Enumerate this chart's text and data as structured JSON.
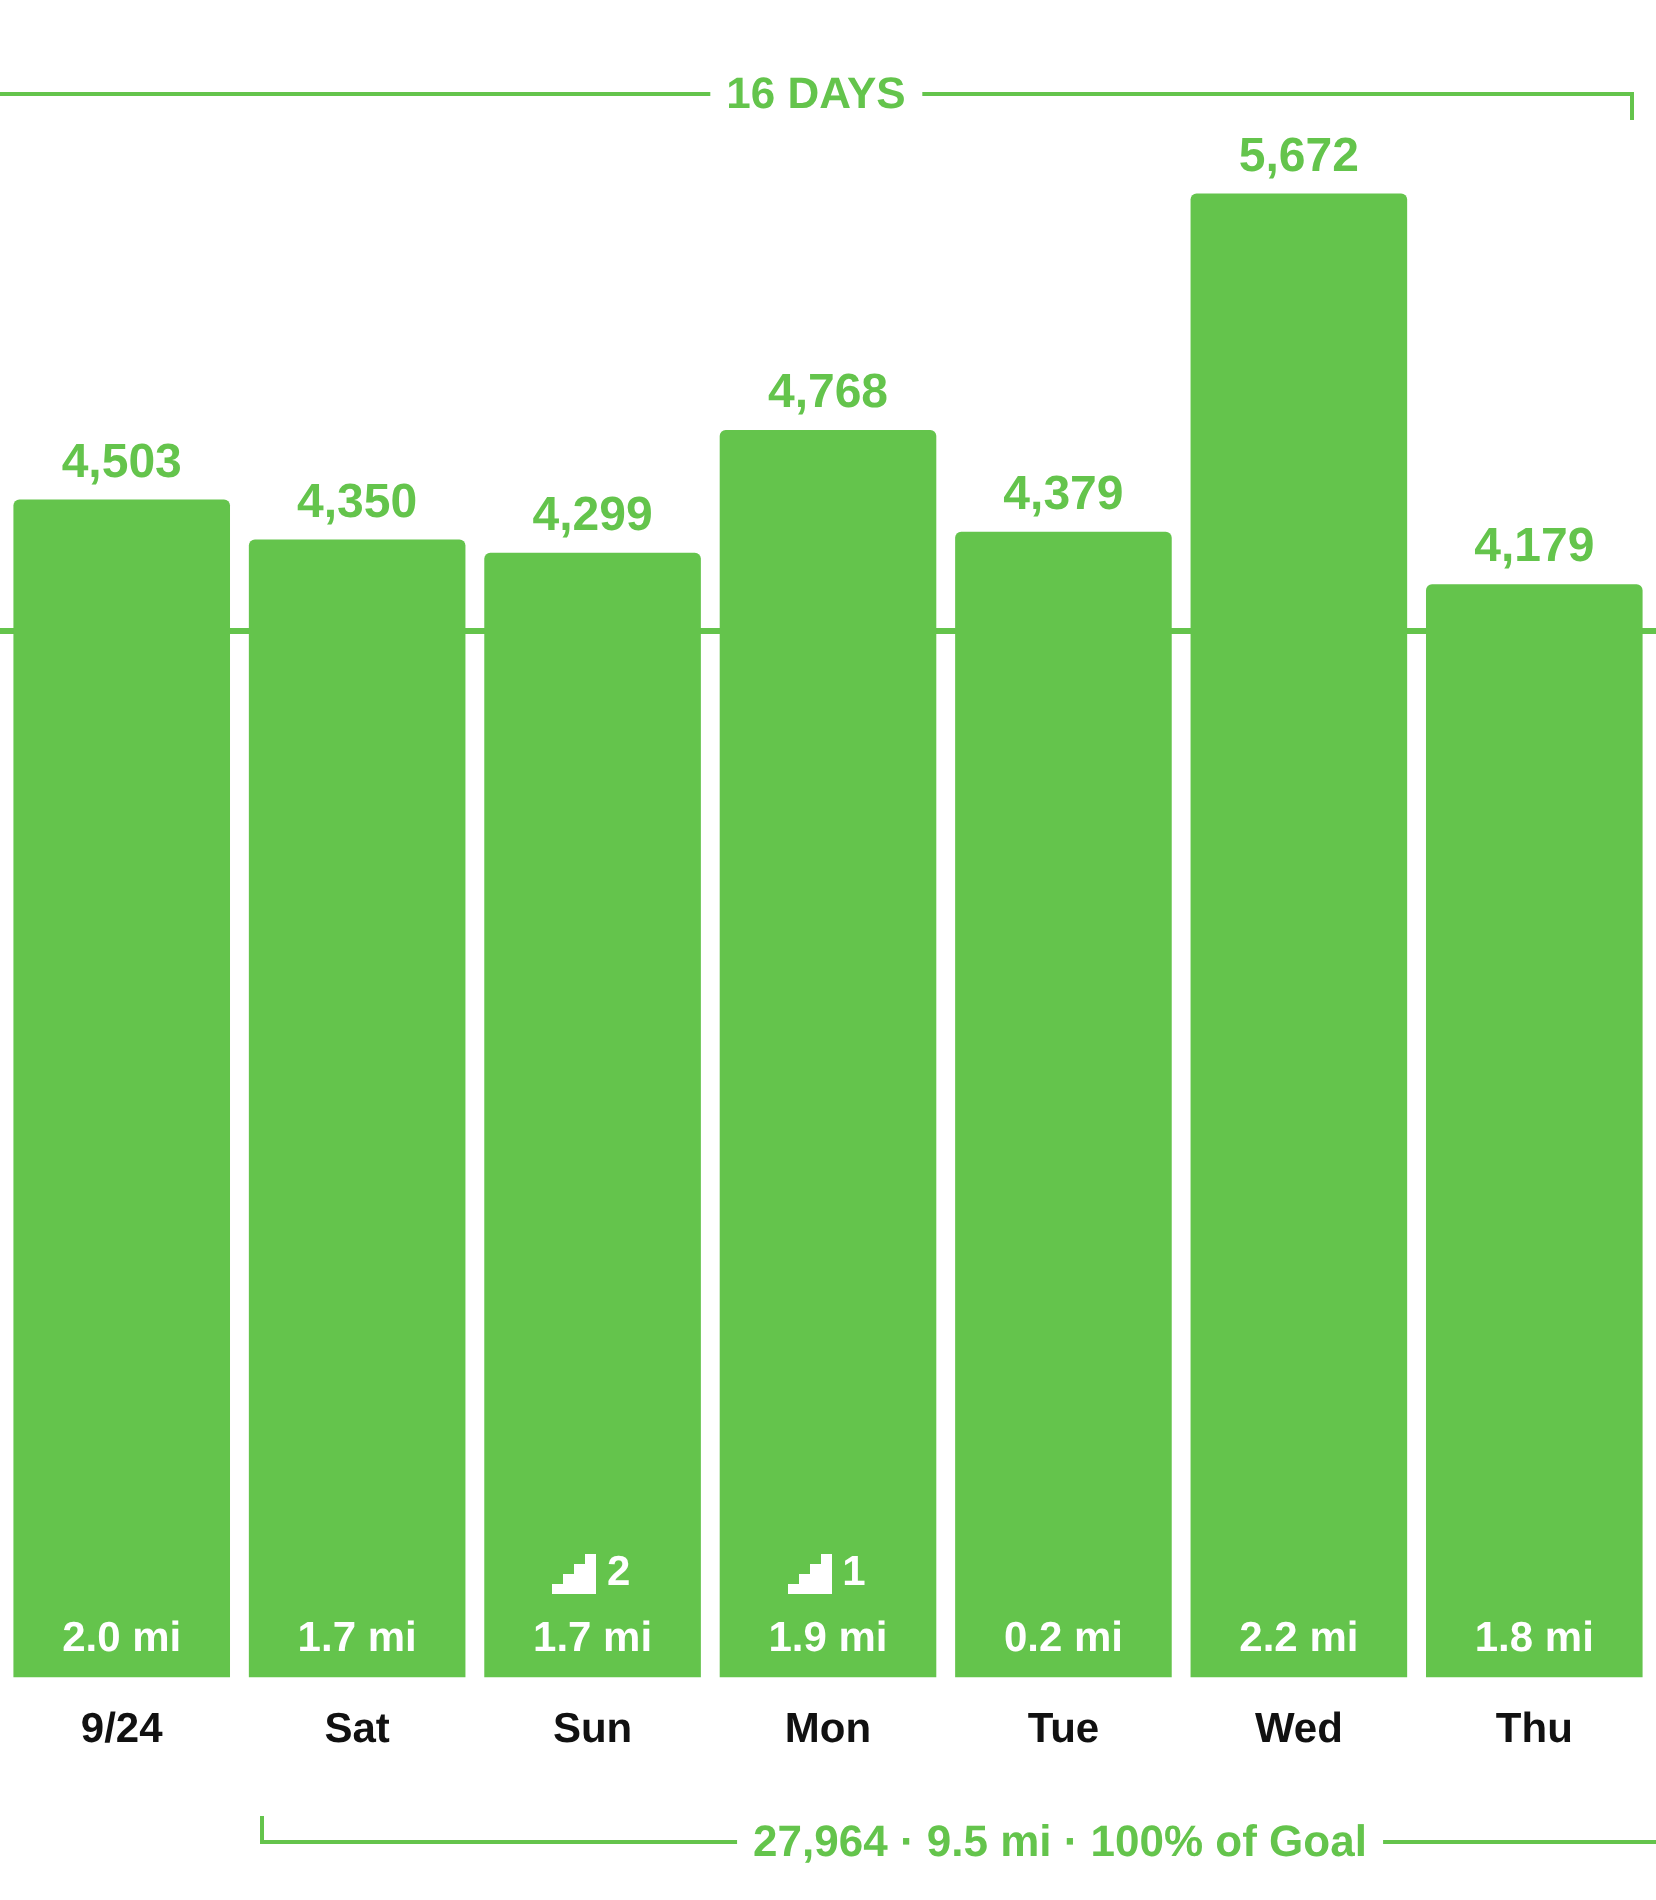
{
  "chart_data": {
    "type": "bar",
    "categories": [
      "9/24",
      "Sat",
      "Sun",
      "Mon",
      "Tue",
      "Wed",
      "Thu"
    ],
    "values": [
      4503,
      4350,
      4299,
      4768,
      4379,
      5672,
      4179
    ],
    "value_labels": [
      "4,503",
      "4,350",
      "4,299",
      "4,768",
      "4,379",
      "5,672",
      "4,179"
    ],
    "color": "#64c44c",
    "grid": false,
    "legend": false,
    "ref_lines": [
      {
        "axis": "y",
        "value": 4000,
        "color": "#64c44c"
      }
    ],
    "annotations": [
      "16 DAYS",
      "27,964 · 9.5 mi · 100% of Goal",
      "2.0 mi",
      "1.7 mi",
      "2\n1.7 mi",
      "1\n1.9 mi",
      "0.2 mi",
      "2.2 mi",
      "1.8 mi"
    ]
  }
}
